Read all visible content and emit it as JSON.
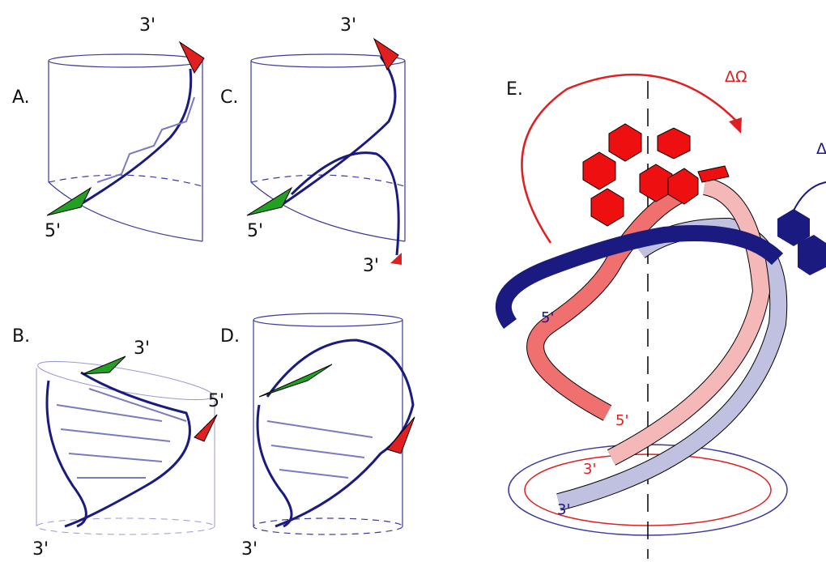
{
  "panels": [
    {
      "label": "A.",
      "ends": [
        "3'",
        "5'"
      ]
    },
    {
      "label": "C.",
      "ends": [
        "3'",
        "5'",
        "3'"
      ]
    },
    {
      "label": "B.",
      "ends": [
        "3'",
        "5'",
        "3'"
      ]
    },
    {
      "label": "D.",
      "ends": [
        "3'"
      ]
    },
    {
      "label": "E.",
      "rotation_label": "ΔΩ",
      "second_rotation_label": "Δ",
      "ends": [
        "5'",
        "5'",
        "3'",
        "3'"
      ]
    }
  ]
}
